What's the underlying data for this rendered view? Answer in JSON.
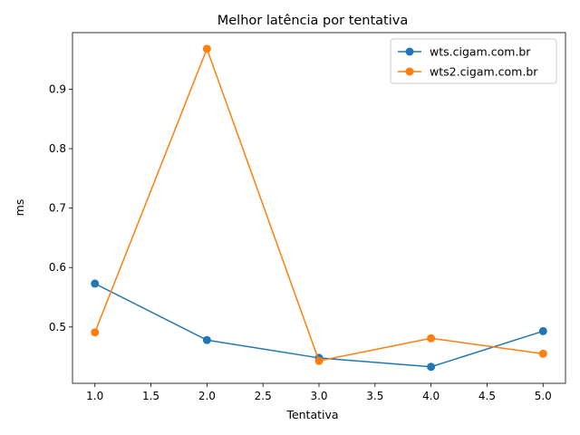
{
  "chart_data": {
    "type": "line",
    "title": "Melhor latência por tentativa",
    "xlabel": "Tentativa",
    "ylabel": "ms",
    "xlim": [
      0.8,
      5.2
    ],
    "ylim": [
      0.4052,
      0.9952
    ],
    "xticks": [
      1.0,
      1.5,
      2.0,
      2.5,
      3.0,
      3.5,
      4.0,
      4.5,
      5.0
    ],
    "xtick_labels": [
      "1.0",
      "1.5",
      "2.0",
      "2.5",
      "3.0",
      "3.5",
      "4.0",
      "4.5",
      "5.0"
    ],
    "yticks": [
      0.5,
      0.6,
      0.7,
      0.8,
      0.9
    ],
    "ytick_labels": [
      "0.5",
      "0.6",
      "0.7",
      "0.8",
      "0.9"
    ],
    "grid": false,
    "legend_position": "top-right",
    "x": [
      1,
      2,
      3,
      4,
      5
    ],
    "series": [
      {
        "name": "wts.cigam.com.br",
        "color": "#1f77b4",
        "values": [
          0.573,
          0.478,
          0.448,
          0.433,
          0.493
        ]
      },
      {
        "name": "wts2.cigam.com.br",
        "color": "#ff7f0e",
        "values": [
          0.491,
          0.968,
          0.443,
          0.481,
          0.455
        ]
      }
    ]
  }
}
